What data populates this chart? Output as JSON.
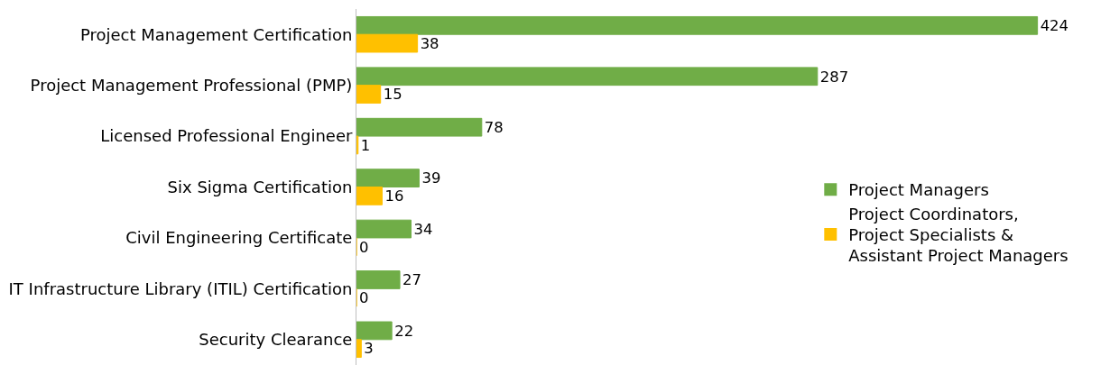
{
  "chart_data": {
    "type": "bar",
    "orientation": "horizontal",
    "data_labels": true,
    "legend": "right",
    "categories": [
      "Project Management Certification",
      "Project Management Professional (PMP)",
      "Licensed Professional Engineer",
      "Six Sigma Certification",
      "Civil Engineering Certificate",
      "IT Infrastructure Library (ITIL) Certification",
      "Security Clearance"
    ],
    "series": [
      {
        "name": "Project Managers",
        "color": "#70ad47",
        "values": [
          424,
          287,
          78,
          39,
          34,
          27,
          22
        ]
      },
      {
        "name": "Project Coordinators, Project Specialists & Assistant Project Managers",
        "color": "#ffc000",
        "values": [
          38,
          15,
          1,
          16,
          0,
          0,
          3
        ]
      }
    ]
  }
}
